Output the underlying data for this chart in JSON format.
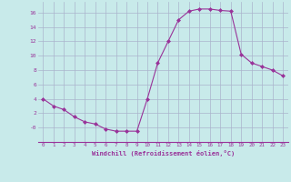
{
  "x": [
    0,
    1,
    2,
    3,
    4,
    5,
    6,
    7,
    8,
    9,
    10,
    11,
    12,
    13,
    14,
    15,
    16,
    17,
    18,
    19,
    20,
    21,
    22,
    23
  ],
  "y": [
    4,
    3,
    2.5,
    1.5,
    0.8,
    0.5,
    -0.2,
    -0.5,
    -0.5,
    -0.5,
    4,
    9,
    12,
    15,
    16.2,
    16.5,
    16.5,
    16.3,
    16.2,
    10.2,
    9,
    8.5,
    8,
    7.2
  ],
  "line_color": "#993399",
  "marker": "D",
  "marker_size": 2,
  "bg_color": "#c8eaea",
  "grid_color": "#aab4cc",
  "xlabel": "Windchill (Refroidissement éolien,°C)",
  "xlabel_color": "#993399",
  "tick_color": "#993399",
  "ylim": [
    -2,
    17.5
  ],
  "xlim": [
    -0.5,
    23.5
  ],
  "yticks": [
    0,
    2,
    4,
    6,
    8,
    10,
    12,
    14,
    16
  ],
  "ytick_labels": [
    "-0",
    "2",
    "4",
    "6",
    "8",
    "10",
    "12",
    "14",
    "16"
  ],
  "xticks": [
    0,
    1,
    2,
    3,
    4,
    5,
    6,
    7,
    8,
    9,
    10,
    11,
    12,
    13,
    14,
    15,
    16,
    17,
    18,
    19,
    20,
    21,
    22,
    23
  ],
  "figwidth": 3.2,
  "figheight": 2.0,
  "dpi": 100
}
